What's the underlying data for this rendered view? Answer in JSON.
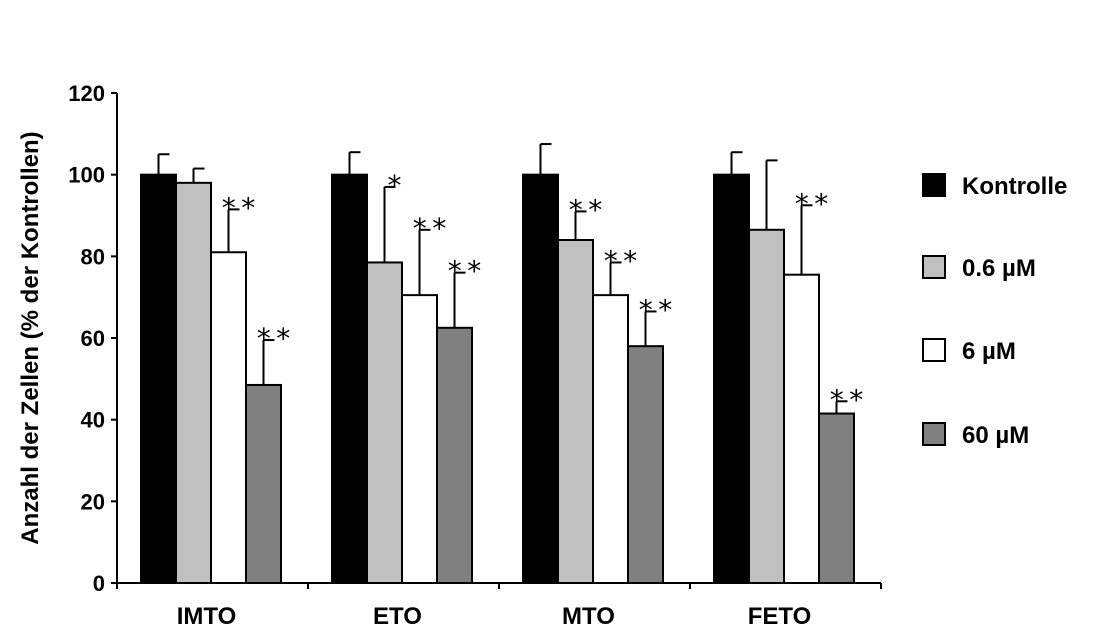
{
  "chart_data": {
    "type": "bar",
    "title": "",
    "xlabel": "",
    "ylabel": "Anzahl der Zellen (% der Kontrollen)",
    "ylim": [
      0,
      120
    ],
    "yticks": [
      0,
      20,
      40,
      60,
      80,
      100,
      120
    ],
    "grid": false,
    "legend_position": "right",
    "categories": [
      "IMTO",
      "ETO",
      "MTO",
      "FETO"
    ],
    "series": [
      {
        "name": "Kontrolle",
        "color": "#000000",
        "values": [
          100,
          100,
          100,
          100
        ],
        "errors": [
          5,
          5.5,
          7.5,
          5.5
        ],
        "significance": [
          "",
          "",
          "",
          ""
        ]
      },
      {
        "name": "0.6 µM",
        "color": "#c0c0c0",
        "values": [
          98,
          78.5,
          84,
          86.5
        ],
        "errors": [
          3.5,
          18.5,
          7,
          17
        ],
        "significance": [
          "",
          "*",
          "**",
          ""
        ]
      },
      {
        "name": "6 µM",
        "color": "#ffffff",
        "values": [
          81,
          70.5,
          70.5,
          75.5
        ],
        "errors": [
          10.5,
          16,
          8,
          17
        ],
        "significance": [
          "**",
          "**",
          "**",
          "**"
        ]
      },
      {
        "name": "60 µM",
        "color": "#808080",
        "values": [
          48.5,
          62.5,
          58,
          41.5
        ],
        "errors": [
          11,
          13.5,
          8.5,
          3
        ],
        "significance": [
          "**",
          "**",
          "**",
          "**"
        ]
      }
    ]
  }
}
